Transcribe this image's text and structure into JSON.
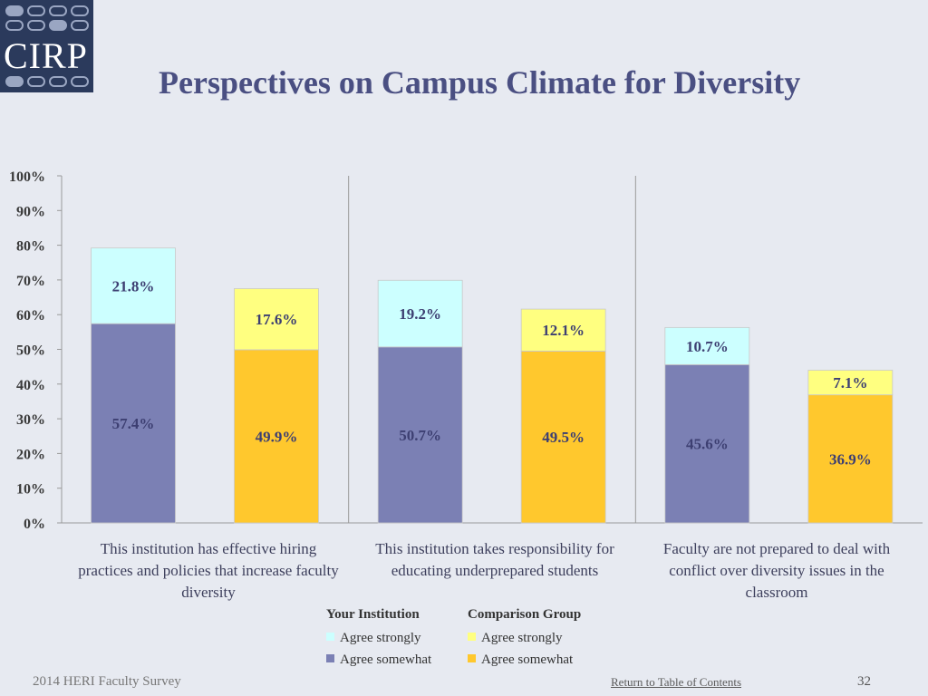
{
  "logo": {
    "text": "CIRP"
  },
  "title": "Perspectives on Campus Climate for Diversity",
  "chart_data": {
    "type": "bar",
    "stacked": true,
    "yticks": [
      "0%",
      "10%",
      "20%",
      "30%",
      "40%",
      "50%",
      "60%",
      "70%",
      "80%",
      "90%",
      "100%"
    ],
    "ylim": [
      0,
      100
    ],
    "categories": [
      "This institution has effective hiring practices and policies that increase faculty diversity",
      "This institution takes responsibility for educating underprepared students",
      "Faculty are not prepared to deal with conflict over diversity issues in the classroom"
    ],
    "groups": [
      {
        "name": "Your Institution",
        "somewhat": [
          57.4,
          50.7,
          45.6
        ],
        "strongly": [
          21.8,
          19.2,
          10.7
        ],
        "somewhat_labels": [
          "57.4%",
          "50.7%",
          "45.6%"
        ],
        "strongly_labels": [
          "21.8%",
          "19.2%",
          "10.7%"
        ]
      },
      {
        "name": "Comparison Group",
        "somewhat": [
          49.9,
          49.5,
          36.9
        ],
        "strongly": [
          17.6,
          12.1,
          7.1
        ],
        "somewhat_labels": [
          "49.9%",
          "49.5%",
          "36.9%"
        ],
        "strongly_labels": [
          "17.6%",
          "12.1%",
          "7.1%"
        ]
      }
    ],
    "colors": {
      "inst_somewhat": "#7b80b4",
      "inst_strongly": "#ccffff",
      "comp_somewhat": "#ffc82d",
      "comp_strongly": "#ffff80"
    },
    "legend": {
      "your_institution": "Your Institution",
      "comparison_group": "Comparison Group",
      "agree_strongly": "Agree strongly",
      "agree_somewhat": "Agree somewhat"
    }
  },
  "footer": {
    "survey": "2014 HERI Faculty Survey",
    "link": "Return to Table of Contents",
    "page": "32"
  }
}
